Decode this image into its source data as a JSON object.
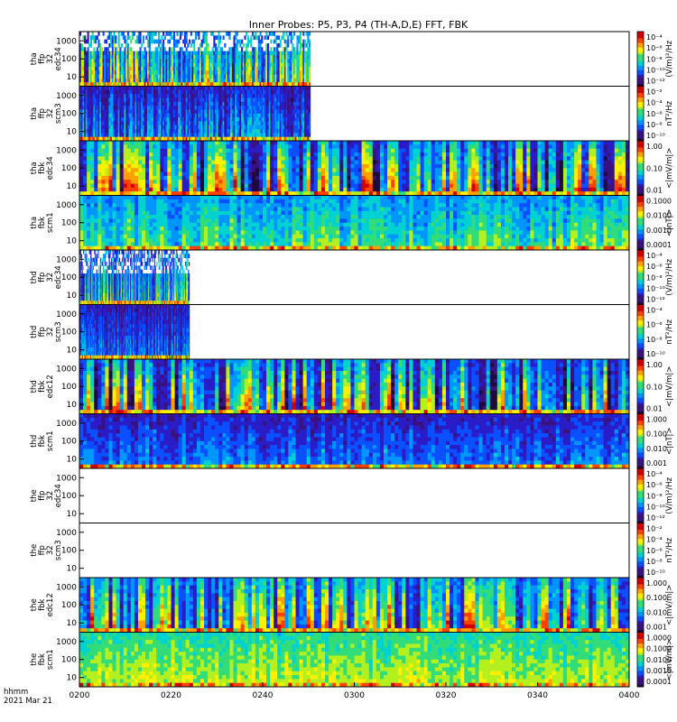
{
  "chart_data": {
    "type": "heatmap",
    "title": "Inner Probes: P5, P3, P4 (TH-A,D,E) FFT, FBK",
    "x_axis": {
      "label_lines": [
        "hhmm",
        "2021 Mar 21"
      ],
      "ticks": [
        "0200",
        "0220",
        "0240",
        "0300",
        "0320",
        "0340",
        "0400"
      ]
    },
    "colors": {
      "background": "#ffffff",
      "axes": "#000000",
      "palette": [
        "#1e0a3c",
        "#3a1280",
        "#2a1dc8",
        "#0a50ff",
        "#0096ff",
        "#00d2d2",
        "#32dc78",
        "#b4f01e",
        "#fff000",
        "#ffa000",
        "#ff4000",
        "#d20000"
      ]
    },
    "panels": [
      {
        "name": "thd-ffp-32-edc34",
        "ylabel_lines": [
          "tha",
          "ffp",
          "32",
          "edc34"
        ],
        "yticks": [
          "1000",
          "100",
          "10"
        ],
        "cbar_ticks": [
          "10⁻⁴",
          "10⁻⁶",
          "10⁻⁸",
          "10⁻¹⁰",
          "10⁻¹²"
        ],
        "cbar_label": "(V/m)²/Hz",
        "coverage": [
          0,
          0.42
        ],
        "level": 0.35,
        "variability": 0.35,
        "gap_rows": 0.35,
        "bright_bottom": true
      },
      {
        "name": "thd-ffp-32-scm3",
        "ylabel_lines": [
          "tha",
          "ffp",
          "32",
          "scm3"
        ],
        "yticks": [
          "1000",
          "100",
          "10"
        ],
        "cbar_ticks": [
          "10⁻²",
          "10⁻⁴",
          "10⁻⁶",
          "10⁻⁸",
          "10⁻¹⁰"
        ],
        "cbar_label": "nT²/Hz",
        "coverage": [
          0,
          0.42
        ],
        "level": 0.2,
        "variability": 0.2,
        "gap_rows": 0,
        "bright_bottom": true
      },
      {
        "name": "thd-fbk-edc34",
        "ylabel_lines": [
          "tha",
          "fbk",
          "edc34"
        ],
        "yticks": [
          "1000",
          "100",
          "10"
        ],
        "cbar_ticks": [
          "1.00",
          "0.10",
          "0.01"
        ],
        "cbar_label": "<|mV/m|>",
        "coverage": [
          0,
          1
        ],
        "level": 0.35,
        "variability": 0.5,
        "gap_rows": 0,
        "bright_bottom": true
      },
      {
        "name": "thd-fbk-scm1",
        "ylabel_lines": [
          "tha",
          "fbk",
          "scm1"
        ],
        "yticks": [
          "1000",
          "100",
          "10"
        ],
        "cbar_ticks": [
          "0.1000",
          "0.0100",
          "0.0010",
          "0.0001"
        ],
        "cbar_label": "<|nT|>",
        "coverage": [
          0,
          1
        ],
        "level": 0.38,
        "variability": 0.15,
        "gap_rows": 0,
        "bright_bottom": true
      },
      {
        "name": "thd-ffp-32-edc34-b",
        "ylabel_lines": [
          "thd",
          "ffp",
          "32",
          "edc34"
        ],
        "yticks": [
          "1000",
          "100",
          "10"
        ],
        "cbar_ticks": [
          "10⁻⁴",
          "10⁻⁶",
          "10⁻⁸",
          "10⁻¹⁰",
          "10⁻¹²"
        ],
        "cbar_label": "(V/m)²/Hz",
        "coverage": [
          0,
          0.2
        ],
        "level": 0.3,
        "variability": 0.3,
        "gap_rows": 0.4,
        "bright_bottom": true
      },
      {
        "name": "thd-ffp-32-scm3-b",
        "ylabel_lines": [
          "thd",
          "ffp",
          "32",
          "scm3"
        ],
        "yticks": [
          "1000",
          "100",
          "10"
        ],
        "cbar_ticks": [
          "10⁻⁴",
          "10⁻⁶",
          "10⁻⁸",
          "10⁻¹⁰"
        ],
        "cbar_label": "nT²/Hz",
        "coverage": [
          0,
          0.2
        ],
        "level": 0.18,
        "variability": 0.15,
        "gap_rows": 0,
        "bright_bottom": true
      },
      {
        "name": "thd-fbk-edc12",
        "ylabel_lines": [
          "thd",
          "fbk",
          "edc12"
        ],
        "yticks": [
          "1000",
          "100",
          "10"
        ],
        "cbar_ticks": [
          "1.00",
          "0.10",
          "0.01"
        ],
        "cbar_label": "<|mV/m|>",
        "coverage": [
          0,
          1
        ],
        "level": 0.32,
        "variability": 0.5,
        "gap_rows": 0,
        "bright_bottom": true
      },
      {
        "name": "thd-fbk-scm1-b",
        "ylabel_lines": [
          "thd",
          "fbk",
          "scm1"
        ],
        "yticks": [
          "1000",
          "100",
          "10"
        ],
        "cbar_ticks": [
          "1.000",
          "0.100",
          "0.010",
          "0.001"
        ],
        "cbar_label": "<|nT|>",
        "coverage": [
          0,
          1
        ],
        "level": 0.2,
        "variability": 0.1,
        "gap_rows": 0,
        "bright_bottom": true
      },
      {
        "name": "the-ffp-32-edc34",
        "ylabel_lines": [
          "the",
          "ffp",
          "32",
          "edc34"
        ],
        "yticks": [
          "1000",
          "100",
          "10"
        ],
        "cbar_ticks": [
          "10⁻⁴",
          "10⁻⁶",
          "10⁻⁸",
          "10⁻¹⁰",
          "10⁻¹²"
        ],
        "cbar_label": "(V/m)²/Hz",
        "coverage": null,
        "level": 0,
        "variability": 0,
        "gap_rows": 0,
        "bright_bottom": false
      },
      {
        "name": "the-ffp-32-scm3",
        "ylabel_lines": [
          "the",
          "ffp",
          "32",
          "scm3"
        ],
        "yticks": [
          "1000",
          "100",
          "10"
        ],
        "cbar_ticks": [
          "10⁻²",
          "10⁻⁴",
          "10⁻⁶",
          "10⁻⁸",
          "10⁻¹⁰"
        ],
        "cbar_label": "nT²/Hz",
        "coverage": null,
        "level": 0,
        "variability": 0,
        "gap_rows": 0,
        "bright_bottom": false
      },
      {
        "name": "the-fbk-edc12",
        "ylabel_lines": [
          "the",
          "fbk",
          "edc12"
        ],
        "yticks": [
          "1000",
          "100",
          "10"
        ],
        "cbar_ticks": [
          "1.000",
          "0.100",
          "0.010",
          "0.001"
        ],
        "cbar_label": "<|mV/m|>",
        "coverage": [
          0,
          1
        ],
        "level": 0.4,
        "variability": 0.45,
        "gap_rows": 0,
        "bright_bottom": true
      },
      {
        "name": "the-fbk-scm1",
        "ylabel_lines": [
          "the",
          "fbk",
          "scm1"
        ],
        "yticks": [
          "1000",
          "100",
          "10"
        ],
        "cbar_ticks": [
          "1.0000",
          "0.1000",
          "0.0100",
          "0.0010",
          "0.0001"
        ],
        "cbar_label": "<|mV/m|>",
        "coverage": [
          0,
          1
        ],
        "level": 0.5,
        "variability": 0.08,
        "gap_rows": 0,
        "bright_bottom": true
      }
    ]
  }
}
